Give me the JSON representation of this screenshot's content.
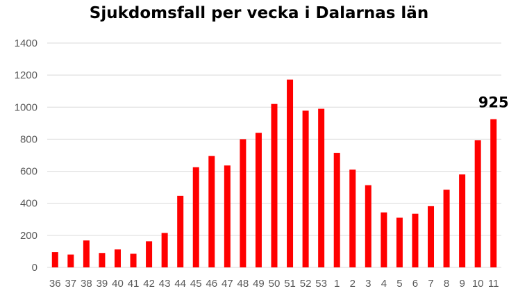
{
  "chart_data": {
    "type": "bar",
    "title": "Sjukdomsfall per vecka i Dalarnas län",
    "xlabel": "",
    "ylabel": "",
    "ylim": [
      0,
      1400
    ],
    "yticks": [
      0,
      200,
      400,
      600,
      800,
      1000,
      1200,
      1400
    ],
    "grid": true,
    "bar_color": "#ff0000",
    "categories": [
      "36",
      "37",
      "38",
      "39",
      "40",
      "41",
      "42",
      "43",
      "44",
      "45",
      "46",
      "47",
      "48",
      "49",
      "50",
      "51",
      "52",
      "53",
      "1",
      "2",
      "3",
      "4",
      "5",
      "6",
      "7",
      "8",
      "9",
      "10",
      "11"
    ],
    "values": [
      95,
      80,
      168,
      90,
      112,
      85,
      163,
      215,
      447,
      625,
      695,
      636,
      800,
      840,
      1020,
      1172,
      978,
      990,
      715,
      610,
      513,
      343,
      310,
      335,
      382,
      485,
      580,
      793,
      925
    ],
    "data_labels": [
      {
        "category": "11",
        "text": "925"
      }
    ]
  }
}
